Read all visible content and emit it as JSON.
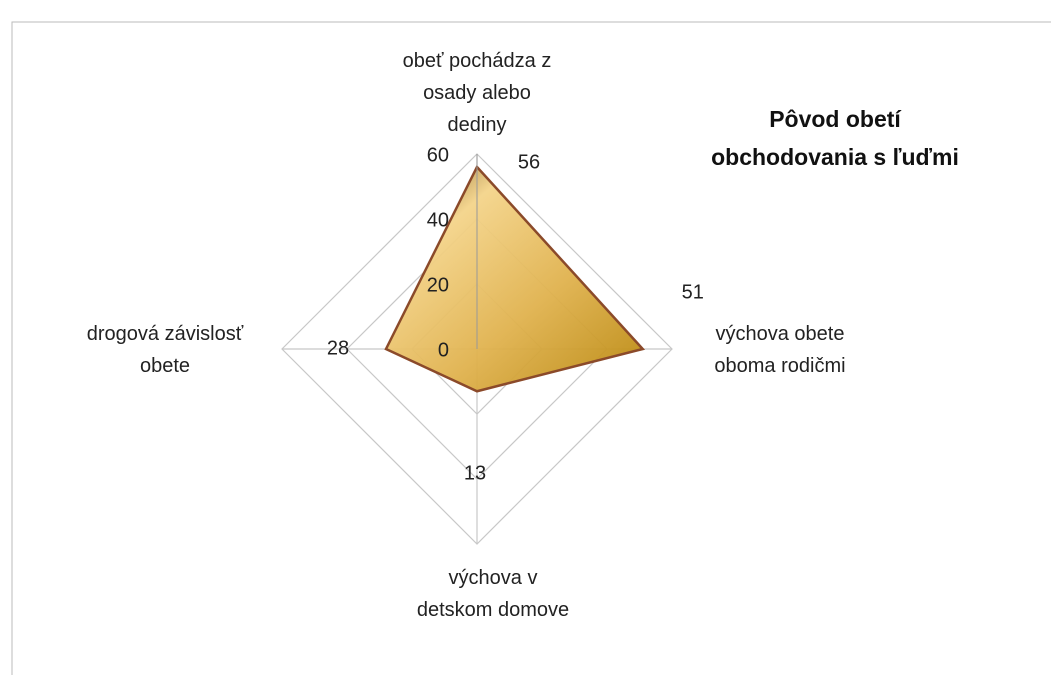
{
  "chart_data": {
    "type": "radar",
    "title": "Pôvod obetí\nobchodovania  s ľuďmi",
    "categories": [
      "obeť pochádza z\nosady alebo\ndediny",
      "výchova obete\noboma rodičmi",
      "výchova v\ndetskom domove",
      "drogová závislosť\nobete"
    ],
    "values": [
      56,
      51,
      13,
      28
    ],
    "color": "#c9961e",
    "ylim": [
      0,
      60
    ],
    "yticks": [
      0,
      20,
      40,
      60
    ],
    "grid": true
  }
}
